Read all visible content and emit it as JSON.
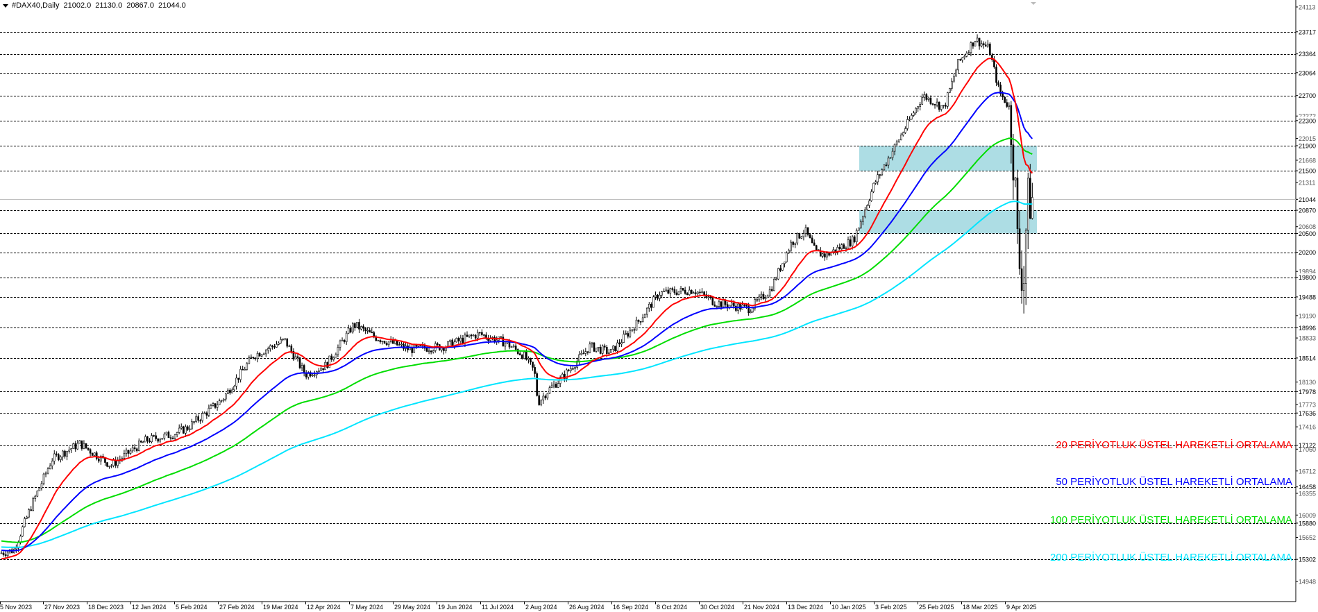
{
  "header": {
    "symbol": "#DAX40,Daily",
    "ohlc": [
      "21002.0",
      "21130.0",
      "20867.0",
      "21044.0"
    ]
  },
  "price_axis": {
    "labels": [
      "24113",
      "23717",
      "23364",
      "23064",
      "22700",
      "22373",
      "22300",
      "22015",
      "21900",
      "21668",
      "21500",
      "21311",
      "21044",
      "20870",
      "20608",
      "20500",
      "20200",
      "19894",
      "19800",
      "19488",
      "19190",
      "18996",
      "18833",
      "18514",
      "18130",
      "17978",
      "17773",
      "17636",
      "17416",
      "17122",
      "17060",
      "16712",
      "16458",
      "16355",
      "16009",
      "15880",
      "15652",
      "15302",
      "14948"
    ],
    "highlighted": [
      "23717",
      "23364",
      "23064",
      "22700",
      "22300",
      "21900",
      "21500",
      "21044",
      "20870",
      "20500",
      "20200",
      "19800",
      "19488",
      "18996",
      "18514",
      "17978",
      "17636",
      "17122",
      "16458",
      "15880",
      "15302"
    ]
  },
  "time_axis": {
    "labels": [
      "15 Nov 2023",
      "27 Nov 2023",
      "18 Dec 2023",
      "12 Jan 2024",
      "5 Feb 2024",
      "27 Feb 2024",
      "19 Mar 2024",
      "12 Apr 2024",
      "7 May 2024",
      "29 May 2024",
      "19 Jun 2024",
      "11 Jul 2024",
      "2 Aug 2024",
      "26 Aug 2024",
      "16 Sep 2024",
      "8 Oct 2024",
      "30 Oct 2024",
      "21 Nov 2024",
      "13 Dec 2024",
      "10 Jan 2025",
      "3 Feb 2025",
      "25 Feb 2025",
      "18 Mar 2025",
      "9 Apr 2025"
    ]
  },
  "levels": [
    23717,
    23364,
    23064,
    22700,
    22300,
    21900,
    21500,
    20870,
    20500,
    20200,
    19800,
    19488,
    18996,
    18514,
    17978,
    17636,
    17122,
    16458,
    15880,
    15302
  ],
  "current_price": 21044,
  "zones": [
    {
      "from": 21500,
      "to": 21900
    },
    {
      "from": 20500,
      "to": 20870
    }
  ],
  "ema_legend": [
    {
      "text": "20 PERİYOTLUK ÜSTEL HAREKETLİ ORTALAMA",
      "color": "#ff0000"
    },
    {
      "text": "50 PERİYOTLUK ÜSTEL HAREKETLİ ORTALAMA",
      "color": "#0000ff"
    },
    {
      "text": "100 PERİYOTLUK ÜSTEL HAREKETLİ ORTALAMA",
      "color": "#00dd00"
    },
    {
      "text": "200  PERİYOTLUK ÜSTEL HAREKETLİ ORTALAMA",
      "color": "#00e5ff"
    }
  ],
  "colors": {
    "zone": "#a9dbe3",
    "grid": "#000000",
    "candle": "#000000"
  }
}
